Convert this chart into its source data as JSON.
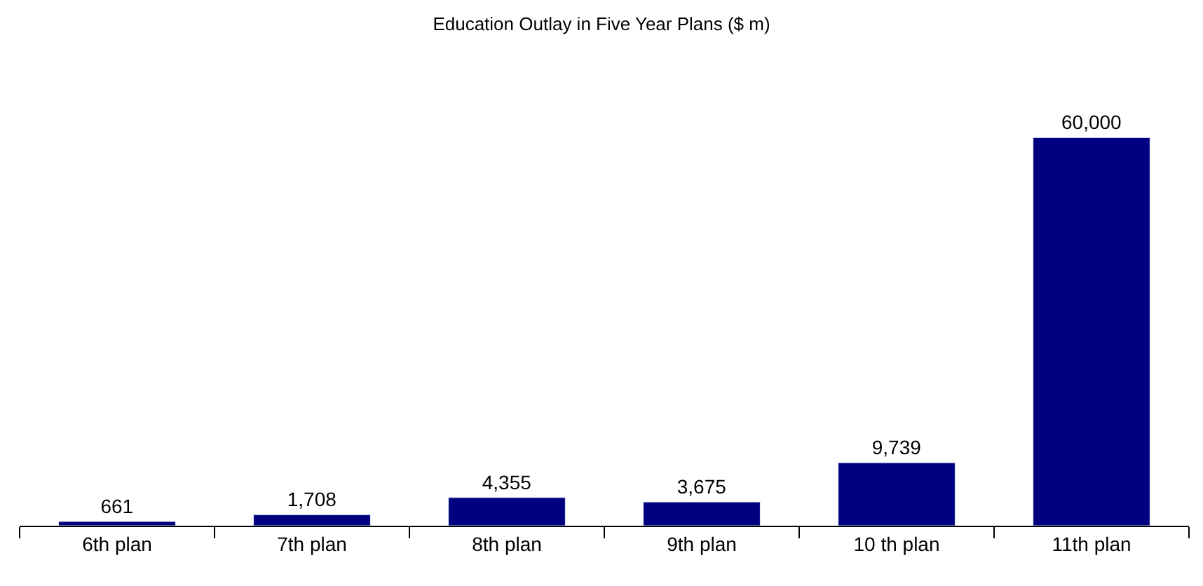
{
  "chart_data": {
    "type": "bar",
    "title": "Education Outlay in Five Year Plans ($ m)",
    "categories": [
      "6th plan",
      "7th plan",
      "8th plan",
      "9th plan",
      "10 th plan",
      "11th plan"
    ],
    "values": [
      661,
      1708,
      4355,
      3675,
      9739,
      60000
    ],
    "value_labels": [
      "661",
      "1,708",
      "4,355",
      "3,675",
      "9,739",
      "60,000"
    ],
    "color": "#000080"
  }
}
